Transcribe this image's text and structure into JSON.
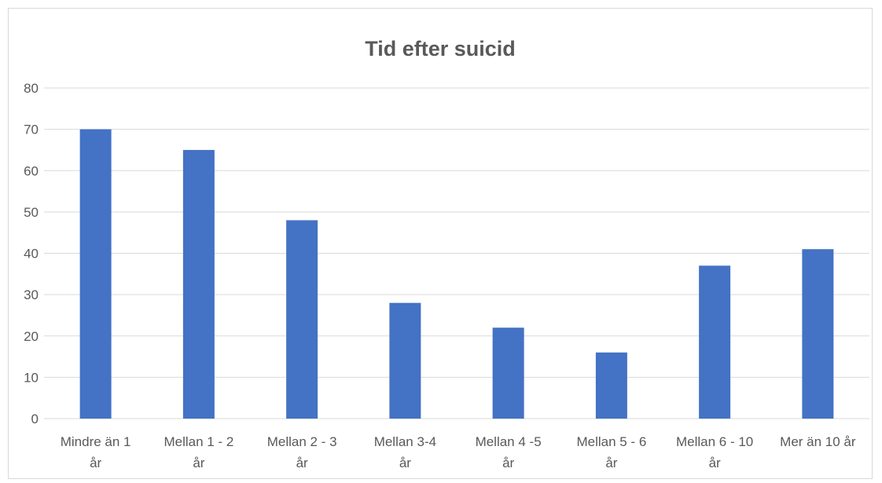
{
  "chart_data": {
    "type": "bar",
    "title": "Tid efter suicid",
    "xlabel": "",
    "ylabel": "",
    "categories": [
      [
        "Mindre än 1",
        "år"
      ],
      [
        "Mellan 1 - 2",
        "år"
      ],
      [
        "Mellan 2 - 3",
        "år"
      ],
      [
        "Mellan 3-4",
        "år"
      ],
      [
        "Mellan 4 -5",
        "år"
      ],
      [
        "Mellan 5 - 6",
        "år"
      ],
      [
        "Mellan 6 - 10",
        "år"
      ],
      [
        "Mer än 10 år"
      ]
    ],
    "values": [
      70,
      65,
      48,
      28,
      22,
      16,
      37,
      41
    ],
    "ylim": [
      0,
      80
    ],
    "yticks": [
      0,
      10,
      20,
      30,
      40,
      50,
      60,
      70,
      80
    ],
    "grid": true,
    "legend": "none",
    "colors": {
      "bar": "#4472c4",
      "grid": "#d9d9d9",
      "text": "#595959"
    }
  }
}
